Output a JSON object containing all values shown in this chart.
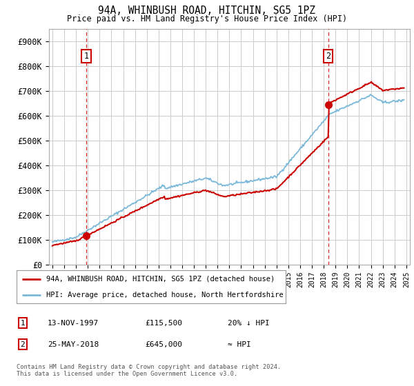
{
  "title": "94A, WHINBUSH ROAD, HITCHIN, SG5 1PZ",
  "subtitle": "Price paid vs. HM Land Registry's House Price Index (HPI)",
  "legend_line1": "94A, WHINBUSH ROAD, HITCHIN, SG5 1PZ (detached house)",
  "legend_line2": "HPI: Average price, detached house, North Hertfordshire",
  "table_row1": [
    "1",
    "13-NOV-1997",
    "£115,500",
    "20% ↓ HPI"
  ],
  "table_row2": [
    "2",
    "25-MAY-2018",
    "£645,000",
    "≈ HPI"
  ],
  "footnote": "Contains HM Land Registry data © Crown copyright and database right 2024.\nThis data is licensed under the Open Government Licence v3.0.",
  "hpi_color": "#7ab8d9",
  "price_color": "#cc0000",
  "vline_color": "#cc0000",
  "marker_color": "#cc0000",
  "background_color": "#ffffff",
  "grid_color": "#cccccc",
  "ylim": [
    0,
    950000
  ],
  "yticks": [
    0,
    100000,
    200000,
    300000,
    400000,
    500000,
    600000,
    700000,
    800000,
    900000
  ],
  "ytick_labels": [
    "£0",
    "£100K",
    "£200K",
    "£300K",
    "£400K",
    "£500K",
    "£600K",
    "£700K",
    "£800K",
    "£900K"
  ],
  "point1_date": 1997.87,
  "point1_value": 115500,
  "point2_date": 2018.39,
  "point2_value": 645000,
  "xlim_left": 1994.7,
  "xlim_right": 2025.3
}
